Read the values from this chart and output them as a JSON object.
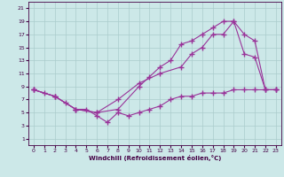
{
  "xlabel": "Windchill (Refroidissement éolien,°C)",
  "bg_color": "#cce8e8",
  "line_color": "#993399",
  "grid_color": "#aacccc",
  "xlim": [
    -0.5,
    23.5
  ],
  "ylim": [
    0,
    22
  ],
  "xticks": [
    0,
    1,
    2,
    3,
    4,
    5,
    6,
    7,
    8,
    9,
    10,
    11,
    12,
    13,
    14,
    15,
    16,
    17,
    18,
    19,
    20,
    21,
    22,
    23
  ],
  "yticks": [
    1,
    3,
    5,
    7,
    9,
    11,
    13,
    15,
    17,
    19,
    21
  ],
  "line1_x": [
    0,
    1,
    2,
    3,
    4,
    5,
    6,
    7,
    8,
    9,
    10,
    11,
    12,
    13,
    14,
    15,
    16,
    17,
    18,
    19,
    20,
    21,
    22,
    23
  ],
  "line1_y": [
    8.5,
    8,
    7.5,
    6.5,
    5.5,
    5.5,
    4.5,
    3.5,
    5,
    4.5,
    5,
    5.5,
    6,
    7,
    7.5,
    7.5,
    8,
    8,
    8,
    8.5,
    8.5,
    8.5,
    8.5,
    8.5
  ],
  "line2_x": [
    0,
    2,
    4,
    6,
    8,
    10,
    11,
    12,
    13,
    14,
    15,
    16,
    17,
    18,
    19,
    20,
    21,
    22,
    23
  ],
  "line2_y": [
    8.5,
    7.5,
    5.5,
    5,
    5.5,
    9,
    10.5,
    12,
    13,
    15.5,
    16,
    17,
    18,
    19,
    19,
    14,
    13.5,
    8.5,
    8.5
  ],
  "line3_x": [
    0,
    2,
    4,
    6,
    8,
    10,
    12,
    14,
    15,
    16,
    17,
    18,
    19,
    20,
    21,
    22,
    23
  ],
  "line3_y": [
    8.5,
    7.5,
    5.5,
    5,
    7,
    9.5,
    11,
    12,
    14,
    15,
    17,
    17,
    19,
    17,
    16,
    8.5,
    8.5
  ]
}
